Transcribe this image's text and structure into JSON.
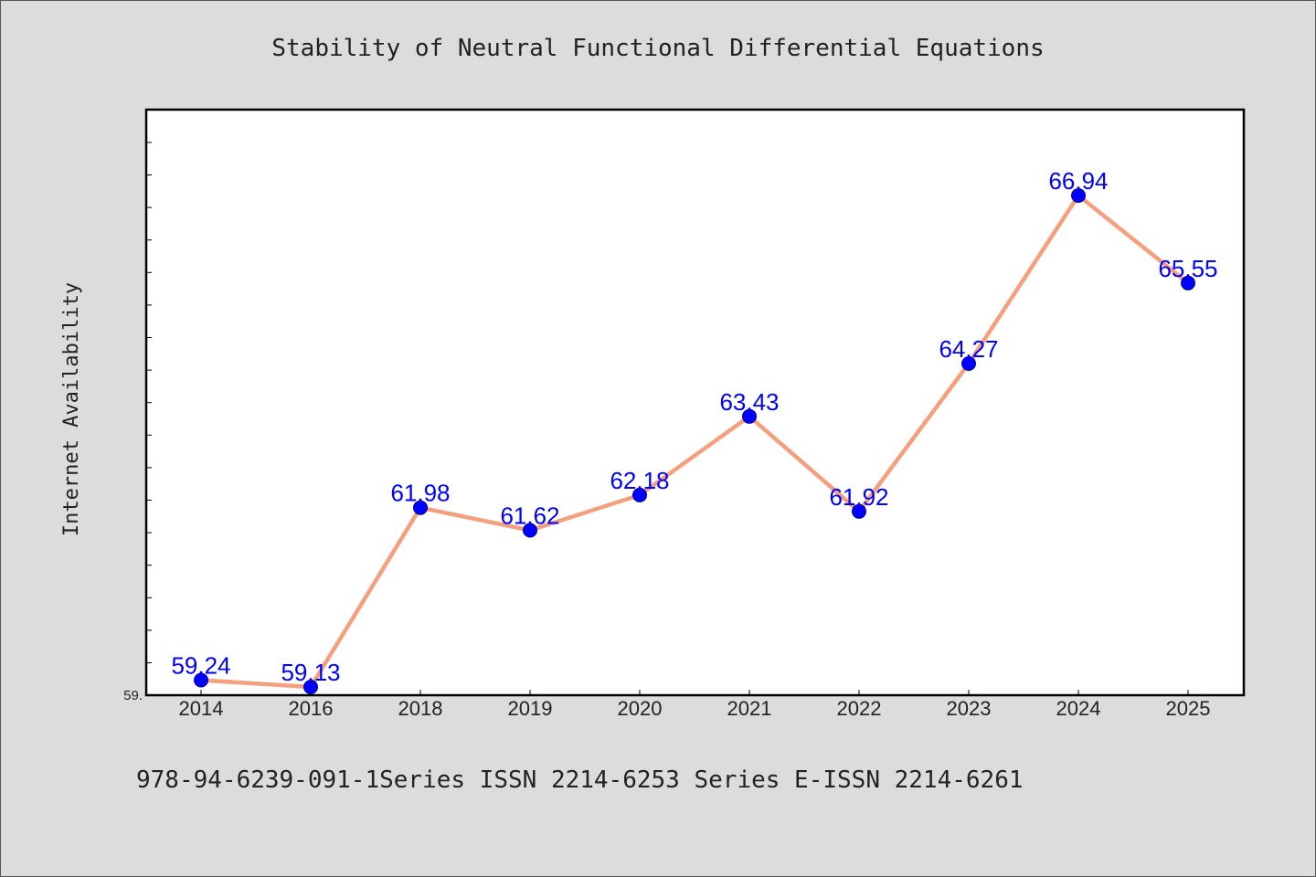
{
  "chart_data": {
    "type": "line",
    "title": "Stability of Neutral Functional Differential Equations",
    "ylabel": "Internet Availability",
    "xlabel": "",
    "categories": [
      "2014",
      "2016",
      "2018",
      "2019",
      "2020",
      "2021",
      "2022",
      "2023",
      "2024",
      "2025"
    ],
    "series": [
      {
        "values": [
          59.24,
          59.13,
          61.98,
          61.62,
          62.18,
          63.43,
          61.92,
          64.27,
          66.94,
          65.55
        ]
      }
    ],
    "data_labels": [
      "59.24",
      "59.13",
      "61.98",
      "61.62",
      "62.18",
      "63.43",
      "61.92",
      "64.27",
      "66.94",
      "65.55"
    ],
    "ylim": [
      59.0,
      68.0
    ],
    "y_tick_label": "59.",
    "grid": false,
    "legend": "none",
    "colors": {
      "line": "#f4a07f",
      "marker": "#0000ff",
      "data_label": "#0000ff",
      "background": "#dcdcdc",
      "plot_background": "#ffffff"
    }
  },
  "footer": "978-94-6239-091-1Series ISSN 2214-6253 Series E-ISSN 2214-6261"
}
